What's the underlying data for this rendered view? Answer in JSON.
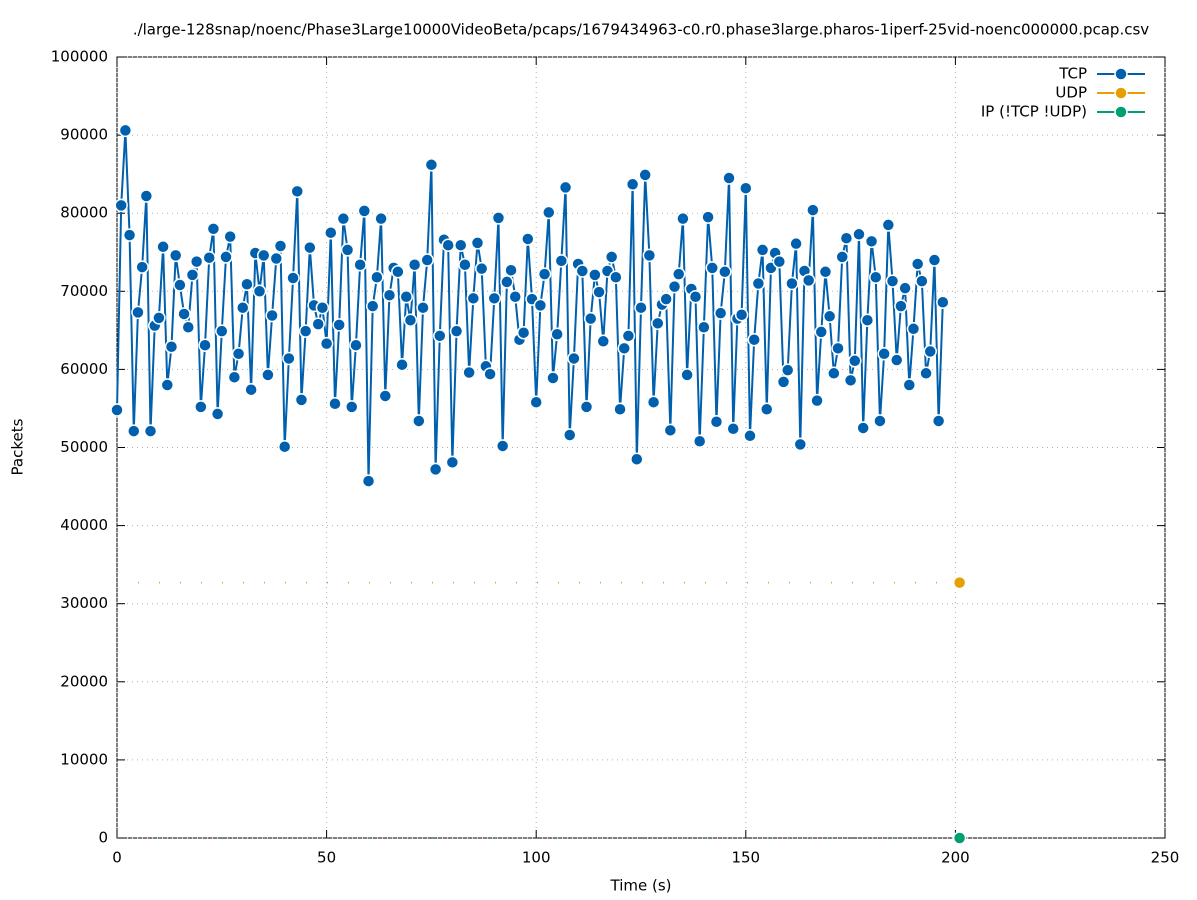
{
  "chart_data": {
    "type": "line",
    "title": "./large-128snap/noenc/Phase3Large10000VideoBeta/pcaps/1679434963-c0.r0.phase3large.pharos-1iperf-25vid-noenc000000.pcap.csv",
    "x_label": "Time (s)",
    "y_label": "Packets",
    "xlim": [
      0,
      250
    ],
    "xticks": [
      0,
      50,
      100,
      150,
      200,
      250
    ],
    "ylim": [
      0,
      100000
    ],
    "yticks": [
      0,
      10000,
      20000,
      30000,
      40000,
      50000,
      60000,
      70000,
      80000,
      90000,
      100000
    ],
    "grid": true,
    "legend": "top-right",
    "series": [
      {
        "name": "TCP",
        "color": "#0060ad",
        "x": [
          0,
          1,
          2,
          3,
          4,
          5,
          6,
          7,
          8,
          9,
          10,
          11,
          12,
          13,
          14,
          15,
          16,
          17,
          18,
          19,
          20,
          21,
          22,
          23,
          24,
          25,
          26,
          27,
          28,
          29,
          30,
          31,
          32,
          33,
          34,
          35,
          36,
          37,
          38,
          39,
          40,
          41,
          42,
          43,
          44,
          45,
          46,
          47,
          48,
          49,
          50,
          51,
          52,
          53,
          54,
          55,
          56,
          57,
          58,
          59,
          60,
          61,
          62,
          63,
          64,
          65,
          66,
          67,
          68,
          69,
          70,
          71,
          72,
          73,
          74,
          75,
          76,
          77,
          78,
          79,
          80,
          81,
          82,
          83,
          84,
          85,
          86,
          87,
          88,
          89,
          90,
          91,
          92,
          93,
          94,
          95,
          96,
          97,
          98,
          99,
          100,
          101,
          102,
          103,
          104,
          105,
          106,
          107,
          108,
          109,
          110,
          111,
          112,
          113,
          114,
          115,
          116,
          117,
          118,
          119,
          120,
          121,
          122,
          123,
          124,
          125,
          126,
          127,
          128,
          129,
          130,
          131,
          132,
          133,
          134,
          135,
          136,
          137,
          138,
          139,
          140,
          141,
          142,
          143,
          144,
          145,
          146,
          147,
          148,
          149,
          150,
          151,
          152,
          153,
          154,
          155,
          156,
          157,
          158,
          159,
          160,
          161,
          162,
          163,
          164,
          165,
          166,
          167,
          168,
          169,
          170,
          171,
          172,
          173,
          174,
          175,
          176,
          177,
          178,
          179,
          180,
          181,
          182,
          183,
          184,
          185,
          186,
          187,
          188,
          189,
          190,
          191,
          192,
          193,
          194,
          195,
          196,
          197
        ],
        "values": [
          54800,
          81000,
          90600,
          77200,
          52100,
          67300,
          73100,
          82200,
          52100,
          65600,
          66600,
          75700,
          58000,
          62900,
          74600,
          70800,
          67100,
          65400,
          72100,
          73800,
          55200,
          63100,
          74300,
          78000,
          54300,
          64900,
          74400,
          77000,
          59000,
          62000,
          67900,
          70900,
          57400,
          74900,
          70000,
          74600,
          59300,
          66900,
          74200,
          75800,
          50100,
          61400,
          71700,
          82800,
          56100,
          64900,
          75600,
          68200,
          65800,
          67900,
          63300,
          77500,
          55600,
          65700,
          79300,
          75300,
          55200,
          63100,
          73400,
          80300,
          45700,
          68100,
          71800,
          79300,
          56600,
          69500,
          73000,
          72500,
          60600,
          69300,
          66300,
          73400,
          53400,
          67900,
          74000,
          86200,
          47200,
          64300,
          76600,
          75900,
          48100,
          64900,
          75900,
          73400,
          59600,
          69100,
          76200,
          72900,
          60400,
          59400,
          69100,
          79400,
          50200,
          71200,
          72700,
          69300,
          63800,
          64700,
          76700,
          69000,
          55800,
          68200,
          72200,
          80100,
          58900,
          64500,
          73900,
          83300,
          51600,
          61400,
          73500,
          72600,
          55200,
          66500,
          72100,
          69900,
          63600,
          72600,
          74400,
          71800,
          54900,
          62700,
          64300,
          83700,
          48500,
          67900,
          84900,
          74600,
          55800,
          65900,
          68300,
          69000,
          52200,
          70600,
          72200,
          79300,
          59300,
          70300,
          69300,
          50800,
          65400,
          79500,
          73000,
          53300,
          67200,
          72500,
          84500,
          52400,
          66500,
          67000,
          83200,
          51500,
          63800,
          71000,
          75300,
          54900,
          73000,
          74900,
          73800,
          58400,
          59900,
          71000,
          76100,
          50400,
          72600,
          71400,
          80400,
          56000,
          64800,
          72500,
          66800,
          59500,
          62700,
          74400,
          76800,
          58600,
          61100,
          77300,
          52500,
          66300,
          76400,
          71800,
          53400,
          62000,
          78500,
          71300,
          61200,
          68100,
          70400,
          58000,
          65200,
          73500,
          71300,
          59500,
          62300,
          74000,
          53400,
          68600
        ]
      },
      {
        "name": "UDP",
        "color": "#e69f00",
        "x": [
          0,
          201
        ],
        "values": [
          32700,
          32700
        ]
      },
      {
        "name": "IP (!TCP  !UDP)",
        "color": "#009e73",
        "x": [
          0,
          201
        ],
        "values": [
          0,
          0
        ]
      }
    ]
  }
}
